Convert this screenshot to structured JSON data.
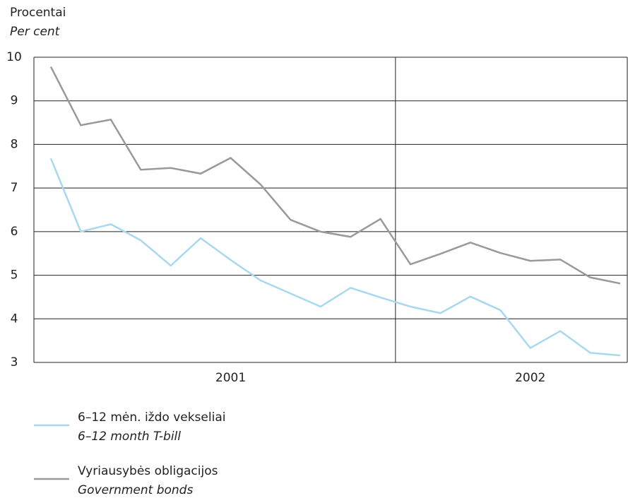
{
  "chart_data": {
    "type": "line",
    "y_label": "Procentai",
    "y_label_en": "Per cent",
    "categories": [
      null,
      null,
      null,
      null,
      null,
      null,
      "2001",
      null,
      null,
      null,
      null,
      null,
      null,
      null,
      null,
      null,
      "2002",
      null,
      null,
      null
    ],
    "series": [
      {
        "name": "6–12 mėn. iždo vekseliai",
        "name_en": "6–12 month T-bill",
        "color": "#a8d8f0",
        "values": [
          7.68,
          6.0,
          6.17,
          5.8,
          5.22,
          5.85,
          5.35,
          4.88,
          4.58,
          4.28,
          4.71,
          4.49,
          4.28,
          4.13,
          4.51,
          4.2,
          3.33,
          3.72,
          3.22,
          3.16
        ]
      },
      {
        "name": "Vyriausybės obligacijos",
        "name_en": "Government bonds",
        "color": "#999999",
        "values": [
          9.78,
          8.44,
          8.57,
          7.42,
          7.46,
          7.33,
          7.69,
          7.08,
          6.27,
          6.0,
          5.88,
          6.29,
          5.25,
          5.49,
          5.75,
          5.51,
          5.33,
          5.36,
          4.95,
          4.81
        ]
      }
    ],
    "ylim": [
      3,
      10
    ],
    "yticks": [
      3,
      4,
      5,
      6,
      7,
      8,
      9,
      10
    ],
    "grid": true
  }
}
